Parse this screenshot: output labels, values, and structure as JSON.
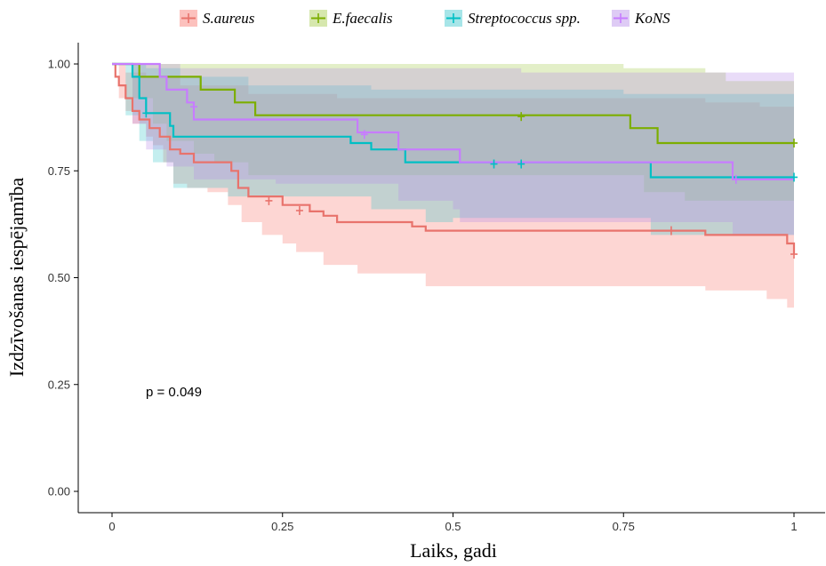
{
  "chart_data": {
    "type": "line",
    "subtype": "kaplan-meier step curves with confidence bands",
    "xlabel": "Laiks, gadi",
    "ylabel": "Izdzīvošanas iespējamība",
    "xlim": [
      0,
      1
    ],
    "ylim": [
      0,
      1
    ],
    "x_ticks": [
      {
        "value": 0,
        "label": "0"
      },
      {
        "value": 0.25,
        "label": "0.25"
      },
      {
        "value": 0.5,
        "label": "0.5"
      },
      {
        "value": 0.75,
        "label": "0.75"
      },
      {
        "value": 1,
        "label": "1"
      }
    ],
    "y_ticks": [
      {
        "value": 0,
        "label": "0.00"
      },
      {
        "value": 0.25,
        "label": "0.25"
      },
      {
        "value": 0.5,
        "label": "0.50"
      },
      {
        "value": 0.75,
        "label": "0.75"
      },
      {
        "value": 1,
        "label": "1.00"
      }
    ],
    "grid": false,
    "legend_position": "top",
    "annotation": {
      "text": "p = 0.049",
      "x": 0.05,
      "y": 0.25
    },
    "series": [
      {
        "name": "S.aureus",
        "color": "#E8736C",
        "band_color": "#F8766D",
        "steps": [
          [
            0,
            1
          ],
          [
            0.005,
            0.97
          ],
          [
            0.01,
            0.95
          ],
          [
            0.02,
            0.92
          ],
          [
            0.03,
            0.89
          ],
          [
            0.04,
            0.87
          ],
          [
            0.055,
            0.85
          ],
          [
            0.07,
            0.83
          ],
          [
            0.085,
            0.8
          ],
          [
            0.1,
            0.79
          ],
          [
            0.12,
            0.77
          ],
          [
            0.175,
            0.75
          ],
          [
            0.185,
            0.71
          ],
          [
            0.2,
            0.69
          ],
          [
            0.25,
            0.67
          ],
          [
            0.29,
            0.655
          ],
          [
            0.31,
            0.645
          ],
          [
            0.33,
            0.63
          ],
          [
            0.44,
            0.62
          ],
          [
            0.46,
            0.61
          ],
          [
            0.87,
            0.6
          ],
          [
            0.99,
            0.58
          ],
          [
            1,
            0.555
          ]
        ],
        "upper": [
          [
            0,
            1
          ],
          [
            0.02,
            0.98
          ],
          [
            0.05,
            0.97
          ],
          [
            0.1,
            0.95
          ],
          [
            0.2,
            0.93
          ],
          [
            0.33,
            0.92
          ],
          [
            0.5,
            0.92
          ],
          [
            0.87,
            0.91
          ],
          [
            0.95,
            0.9
          ],
          [
            1,
            0.9
          ]
        ],
        "lower": [
          [
            0,
            1
          ],
          [
            0.01,
            0.92
          ],
          [
            0.02,
            0.89
          ],
          [
            0.03,
            0.86
          ],
          [
            0.05,
            0.83
          ],
          [
            0.06,
            0.81
          ],
          [
            0.075,
            0.77
          ],
          [
            0.09,
            0.72
          ],
          [
            0.11,
            0.71
          ],
          [
            0.14,
            0.7
          ],
          [
            0.17,
            0.67
          ],
          [
            0.19,
            0.63
          ],
          [
            0.22,
            0.6
          ],
          [
            0.25,
            0.58
          ],
          [
            0.27,
            0.56
          ],
          [
            0.31,
            0.53
          ],
          [
            0.36,
            0.51
          ],
          [
            0.46,
            0.48
          ],
          [
            0.87,
            0.47
          ],
          [
            0.96,
            0.45
          ],
          [
            0.99,
            0.43
          ],
          [
            1,
            0.43
          ]
        ],
        "censor": [
          [
            0.23,
            0.68
          ],
          [
            0.275,
            0.657
          ],
          [
            0.82,
            0.61
          ],
          [
            1,
            0.555
          ]
        ]
      },
      {
        "name": "E.faecalis",
        "color": "#7CAE00",
        "band_color": "#A3C94A",
        "steps": [
          [
            0,
            1
          ],
          [
            0.04,
            0.97
          ],
          [
            0.13,
            0.94
          ],
          [
            0.18,
            0.91
          ],
          [
            0.21,
            0.88
          ],
          [
            0.32,
            0.88
          ],
          [
            0.76,
            0.85
          ],
          [
            0.8,
            0.815
          ],
          [
            1,
            0.815
          ]
        ],
        "upper": [
          [
            0,
            1
          ],
          [
            0.36,
            1
          ],
          [
            0.75,
            0.99
          ],
          [
            0.87,
            0.98
          ],
          [
            0.9,
            0.96
          ],
          [
            1,
            0.96
          ]
        ],
        "lower": [
          [
            0,
            1
          ],
          [
            0.03,
            0.92
          ],
          [
            0.06,
            0.86
          ],
          [
            0.08,
            0.82
          ],
          [
            0.12,
            0.79
          ],
          [
            0.15,
            0.77
          ],
          [
            0.2,
            0.74
          ],
          [
            0.75,
            0.74
          ],
          [
            0.78,
            0.7
          ],
          [
            0.84,
            0.68
          ],
          [
            1,
            0.68
          ]
        ],
        "censor": [
          [
            0.6,
            0.877
          ],
          [
            1,
            0.815
          ]
        ]
      },
      {
        "name": "Streptococcus spp.",
        "color": "#00BFC4",
        "band_color": "#3CC6CB",
        "steps": [
          [
            0,
            1
          ],
          [
            0.03,
            0.97
          ],
          [
            0.04,
            0.92
          ],
          [
            0.05,
            0.885
          ],
          [
            0.085,
            0.855
          ],
          [
            0.09,
            0.83
          ],
          [
            0.35,
            0.815
          ],
          [
            0.38,
            0.8
          ],
          [
            0.43,
            0.77
          ],
          [
            0.79,
            0.735
          ],
          [
            1,
            0.735
          ]
        ],
        "upper": [
          [
            0,
            1
          ],
          [
            0.05,
            0.99
          ],
          [
            0.1,
            0.97
          ],
          [
            0.2,
            0.95
          ],
          [
            0.35,
            0.95
          ],
          [
            0.38,
            0.94
          ],
          [
            0.5,
            0.94
          ],
          [
            0.75,
            0.93
          ],
          [
            1,
            0.92
          ]
        ],
        "lower": [
          [
            0,
            1
          ],
          [
            0.02,
            0.88
          ],
          [
            0.04,
            0.82
          ],
          [
            0.06,
            0.77
          ],
          [
            0.09,
            0.71
          ],
          [
            0.17,
            0.69
          ],
          [
            0.36,
            0.69
          ],
          [
            0.38,
            0.66
          ],
          [
            0.46,
            0.63
          ],
          [
            0.5,
            0.64
          ],
          [
            0.79,
            0.6
          ],
          [
            1,
            0.6
          ]
        ],
        "censor": [
          [
            0.05,
            0.885
          ],
          [
            0.56,
            0.766
          ],
          [
            0.6,
            0.766
          ],
          [
            1,
            0.735
          ]
        ]
      },
      {
        "name": "KoNS",
        "color": "#C77CFF",
        "band_color": "#B68BE8",
        "steps": [
          [
            0,
            1
          ],
          [
            0.07,
            0.97
          ],
          [
            0.08,
            0.94
          ],
          [
            0.11,
            0.91
          ],
          [
            0.12,
            0.87
          ],
          [
            0.36,
            0.84
          ],
          [
            0.42,
            0.8
          ],
          [
            0.51,
            0.77
          ],
          [
            0.91,
            0.73
          ],
          [
            1,
            0.73
          ]
        ],
        "upper": [
          [
            0,
            1
          ],
          [
            0.1,
            0.99
          ],
          [
            0.36,
            0.99
          ],
          [
            0.6,
            0.98
          ],
          [
            0.88,
            0.98
          ],
          [
            1,
            0.97
          ]
        ],
        "lower": [
          [
            0,
            1
          ],
          [
            0.03,
            0.86
          ],
          [
            0.05,
            0.8
          ],
          [
            0.08,
            0.76
          ],
          [
            0.12,
            0.73
          ],
          [
            0.24,
            0.72
          ],
          [
            0.36,
            0.72
          ],
          [
            0.42,
            0.68
          ],
          [
            0.5,
            0.66
          ],
          [
            0.51,
            0.63
          ],
          [
            0.79,
            0.63
          ],
          [
            0.91,
            0.6
          ],
          [
            1,
            0.6
          ]
        ],
        "censor": [
          [
            0.12,
            0.9
          ],
          [
            0.37,
            0.835
          ],
          [
            0.915,
            0.73
          ]
        ]
      }
    ]
  }
}
